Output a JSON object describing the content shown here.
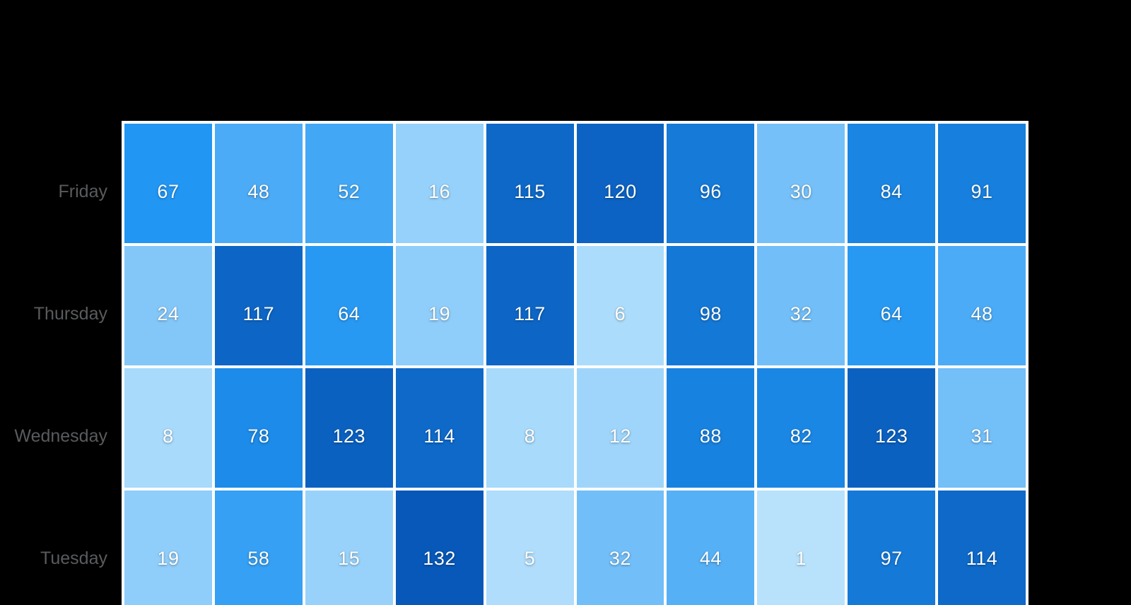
{
  "page": {
    "background": "#000000"
  },
  "chart_data": {
    "type": "heatmap",
    "title": "",
    "rows": [
      "Friday",
      "Thursday",
      "Wednesday",
      "Tuesday"
    ],
    "num_columns": 10,
    "column_labels_visible": false,
    "values": [
      [
        67,
        48,
        52,
        16,
        115,
        120,
        96,
        30,
        84,
        91
      ],
      [
        24,
        117,
        64,
        19,
        117,
        6,
        98,
        32,
        64,
        48
      ],
      [
        8,
        78,
        123,
        114,
        8,
        12,
        88,
        82,
        123,
        31
      ],
      [
        19,
        58,
        15,
        132,
        5,
        32,
        44,
        1,
        97,
        114
      ]
    ],
    "value_range": [
      1,
      132
    ],
    "colormap": {
      "low": "#B8E2FC",
      "mid": "#2196F3",
      "high": "#0758B8"
    },
    "grid_color": "#FFFFFF",
    "row_label_color": "#595B5E",
    "cell_text_color": "#FFFFFF",
    "legend": "none"
  }
}
